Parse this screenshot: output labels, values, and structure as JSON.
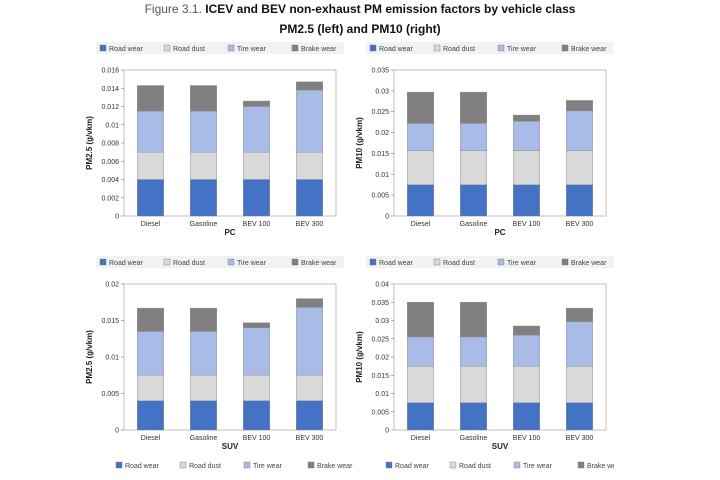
{
  "figure": {
    "label": "Figure 3.1.",
    "title": "ICEV and BEV non-exhaust PM emission factors by vehicle class",
    "subtitle": "PM2.5 (left) and PM10 (right)"
  },
  "legend_items": [
    {
      "name": "Road wear",
      "color": "#4472c4"
    },
    {
      "name": "Road dust",
      "color": "#d9d9d9"
    },
    {
      "name": "Tire wear",
      "color": "#a9bce8"
    },
    {
      "name": "Brake wear",
      "color": "#808080"
    }
  ],
  "chart_data": [
    {
      "type": "bar",
      "stacked": true,
      "legend": "top",
      "categories": [
        "Diesel",
        "Gasoline",
        "BEV 100",
        "BEV 300"
      ],
      "xlabel": "PC",
      "ylabel": "PM2.5 (g/vkm)",
      "ylim": [
        0,
        0.016
      ],
      "yticks": [
        0,
        0.002,
        0.004,
        0.006,
        0.008,
        0.01,
        0.012,
        0.014,
        0.016
      ],
      "ytick_labels": [
        "0",
        "0.002",
        "0.004",
        "0.006",
        "0.008",
        "0.01",
        "0.012",
        "0.014",
        "0.016"
      ],
      "series": [
        {
          "name": "Road wear",
          "values": [
            0.004,
            0.004,
            0.004,
            0.004
          ]
        },
        {
          "name": "Road dust",
          "values": [
            0.003,
            0.003,
            0.003,
            0.003
          ]
        },
        {
          "name": "Tire wear",
          "values": [
            0.0045,
            0.0045,
            0.005,
            0.0068
          ]
        },
        {
          "name": "Brake wear",
          "values": [
            0.0028,
            0.0028,
            0.0006,
            0.0009
          ]
        }
      ]
    },
    {
      "type": "bar",
      "stacked": true,
      "legend": "top",
      "categories": [
        "Diesel",
        "Gasoline",
        "BEV 100",
        "BEV 300"
      ],
      "xlabel": "PC",
      "ylabel": "PM10 (g/vkm)",
      "ylim": [
        0,
        0.035
      ],
      "yticks": [
        0,
        0.005,
        0.01,
        0.015,
        0.02,
        0.025,
        0.03,
        0.035
      ],
      "ytick_labels": [
        "0",
        "0.005",
        "0.01",
        "0.015",
        "0.02",
        "0.025",
        "0.03",
        "0.035"
      ],
      "series": [
        {
          "name": "Road wear",
          "values": [
            0.0075,
            0.0075,
            0.0075,
            0.0075
          ]
        },
        {
          "name": "Road dust",
          "values": [
            0.0082,
            0.0082,
            0.0082,
            0.0082
          ]
        },
        {
          "name": "Tire wear",
          "values": [
            0.0065,
            0.0065,
            0.007,
            0.0095
          ]
        },
        {
          "name": "Brake wear",
          "values": [
            0.0075,
            0.0075,
            0.0015,
            0.0025
          ]
        }
      ]
    },
    {
      "type": "bar",
      "stacked": true,
      "legend": "top",
      "categories": [
        "Diesel",
        "Gasoline",
        "BEV 100",
        "BEV 300"
      ],
      "xlabel": "SUV",
      "ylabel": "PM2.5 (g/vkm)",
      "ylim": [
        0,
        0.02
      ],
      "yticks": [
        0,
        0.005,
        0.01,
        0.015,
        0.02
      ],
      "ytick_labels": [
        "0",
        "0.005",
        "0.01",
        "0.015",
        "0.02"
      ],
      "series": [
        {
          "name": "Road wear",
          "values": [
            0.004,
            0.004,
            0.004,
            0.004
          ]
        },
        {
          "name": "Road dust",
          "values": [
            0.0035,
            0.0035,
            0.0035,
            0.0035
          ]
        },
        {
          "name": "Tire wear",
          "values": [
            0.006,
            0.006,
            0.0065,
            0.0093
          ]
        },
        {
          "name": "Brake wear",
          "values": [
            0.0032,
            0.0032,
            0.0007,
            0.0012
          ]
        }
      ]
    },
    {
      "type": "bar",
      "stacked": true,
      "legend": "top",
      "categories": [
        "Diesel",
        "Gasoline",
        "BEV 100",
        "BEV 300"
      ],
      "xlabel": "SUV",
      "ylabel": "PM10 (g/vkm)",
      "ylim": [
        0,
        0.04
      ],
      "yticks": [
        0,
        0.005,
        0.01,
        0.015,
        0.02,
        0.025,
        0.03,
        0.035,
        0.04
      ],
      "ytick_labels": [
        "0",
        "0.005",
        "0.01",
        "0.015",
        "0.02",
        "0.025",
        "0.03",
        "0.035",
        "0.04"
      ],
      "series": [
        {
          "name": "Road wear",
          "values": [
            0.0075,
            0.0075,
            0.0075,
            0.0075
          ]
        },
        {
          "name": "Road dust",
          "values": [
            0.01,
            0.01,
            0.01,
            0.01
          ]
        },
        {
          "name": "Tire wear",
          "values": [
            0.008,
            0.008,
            0.0085,
            0.0122
          ]
        },
        {
          "name": "Brake wear",
          "values": [
            0.0095,
            0.0095,
            0.0025,
            0.0037
          ]
        }
      ]
    }
  ],
  "bottom_legend": [
    "Road wear",
    "Road dust",
    "Tire wear",
    "Brake wear"
  ]
}
